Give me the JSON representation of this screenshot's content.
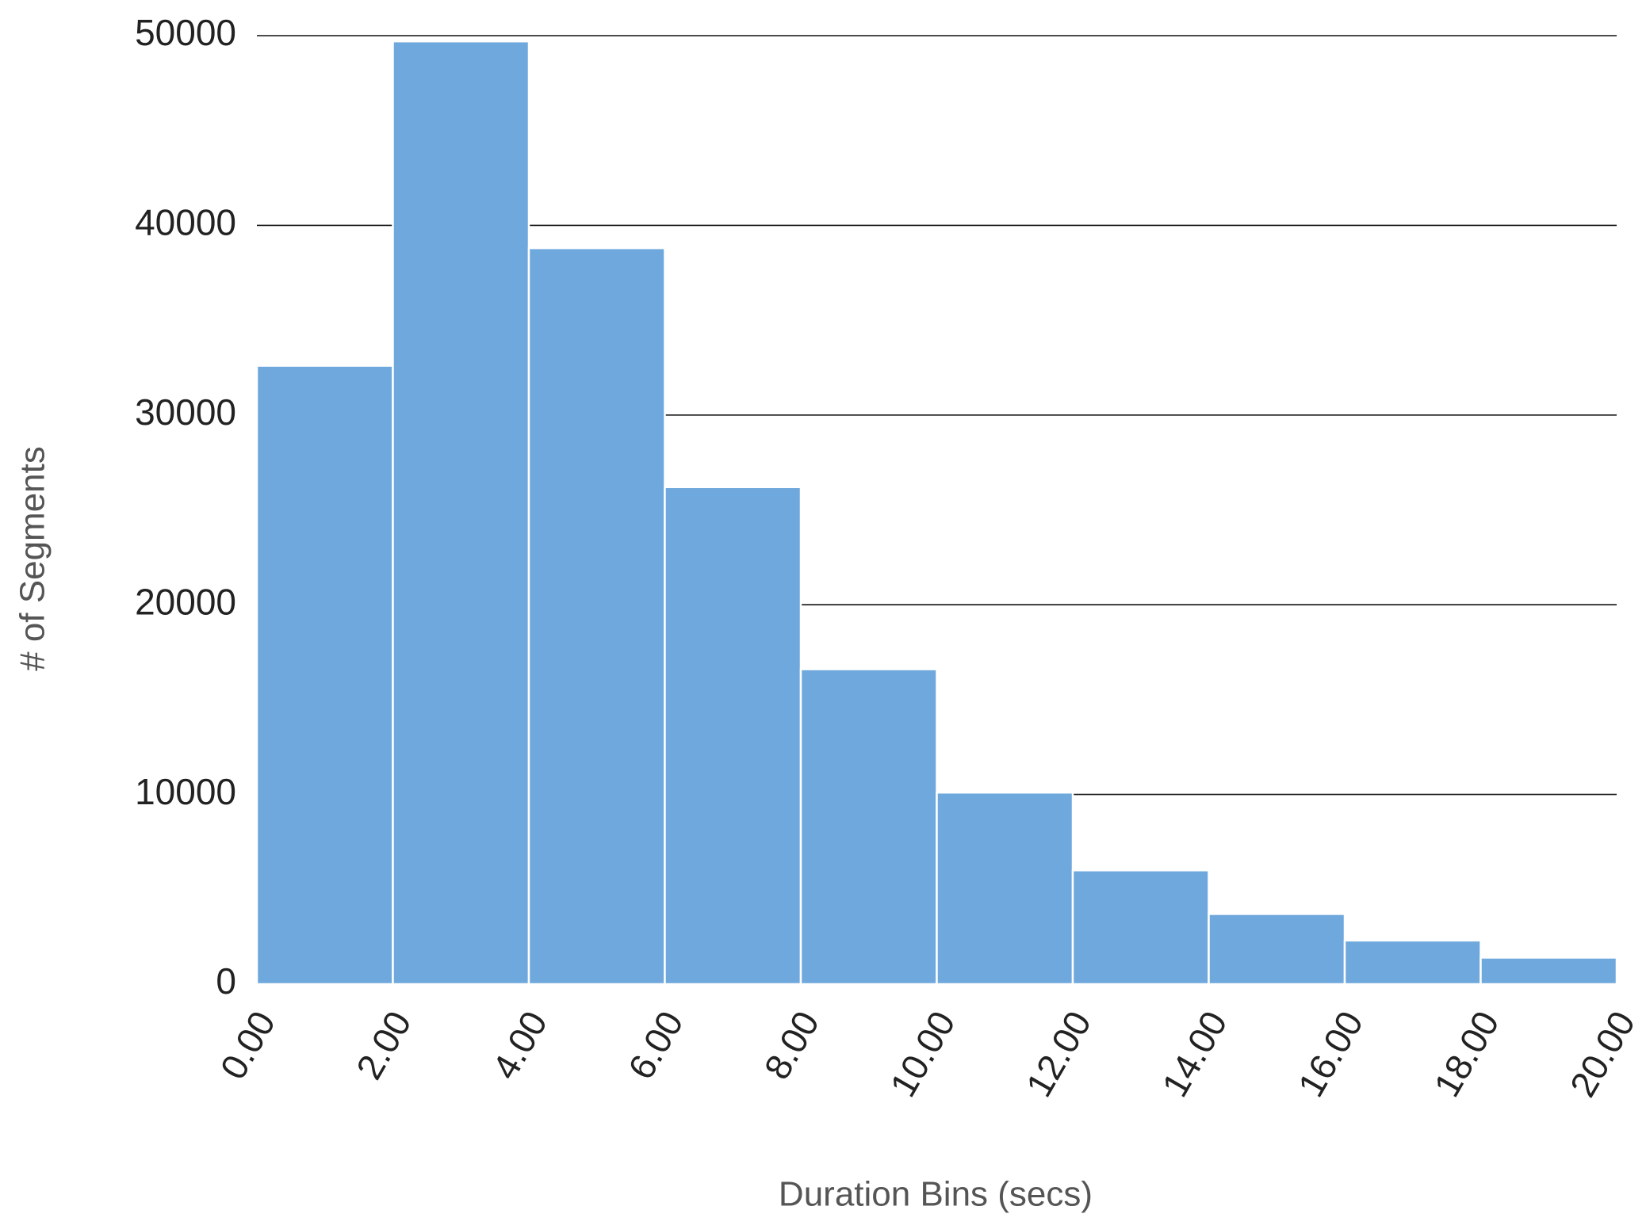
{
  "chart_data": {
    "type": "histogram",
    "bins": [
      0,
      2,
      4,
      6,
      8,
      10,
      12,
      14,
      16,
      18,
      20
    ],
    "values": [
      32600,
      49700,
      38800,
      26200,
      16600,
      10100,
      6000,
      3700,
      2300,
      1400
    ],
    "color": "#6fa8dc",
    "x_label": "Duration Bins (secs)",
    "y_label": "# of Segments",
    "xlim": [
      0,
      20
    ],
    "xticks": [
      {
        "value": 0,
        "label": "0.00"
      },
      {
        "value": 2,
        "label": "2.00"
      },
      {
        "value": 4,
        "label": "4.00"
      },
      {
        "value": 6,
        "label": "6.00"
      },
      {
        "value": 8,
        "label": "8.00"
      },
      {
        "value": 10,
        "label": "10.00"
      },
      {
        "value": 12,
        "label": "12.00"
      },
      {
        "value": 14,
        "label": "14.00"
      },
      {
        "value": 16,
        "label": "16.00"
      },
      {
        "value": 18,
        "label": "18.00"
      },
      {
        "value": 20,
        "label": "20.00"
      }
    ],
    "ylim": [
      0,
      50000
    ],
    "yticks": [
      0,
      10000,
      20000,
      30000,
      40000,
      50000
    ],
    "grid": true
  }
}
